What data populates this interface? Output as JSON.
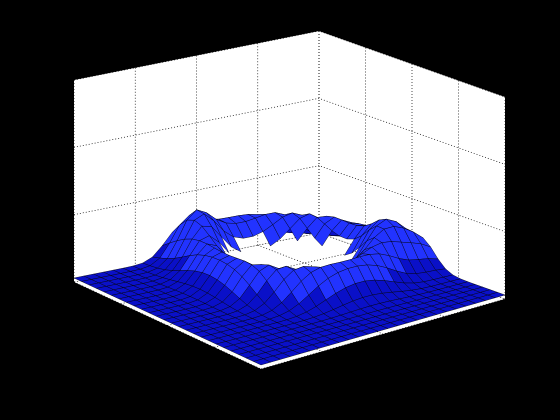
{
  "chart_data": {
    "type": "surface",
    "title": "",
    "xlabel": "",
    "ylabel": "",
    "zlabel": "",
    "grid": true,
    "legend": "none",
    "view": "3d-perspective",
    "x_ticks": [
      "",
      "",
      "",
      ""
    ],
    "y_ticks": [
      "",
      "",
      "",
      ""
    ],
    "z_ticks": [
      "",
      "",
      "",
      ""
    ],
    "zlim": [
      0,
      1
    ],
    "grid_size": [
      26,
      26
    ],
    "surface_description_values": {
      "base_level": 0.02,
      "hole_depth": 0.0,
      "ridge_heights": [
        0.13,
        0.17,
        0.16
      ]
    }
  },
  "colors": {
    "background": "#000000",
    "axes_face": "#ffffff",
    "surface": "#0a10c8",
    "surface_highlight": "#2233ff",
    "edge": "#000000",
    "grid": "#000000"
  }
}
